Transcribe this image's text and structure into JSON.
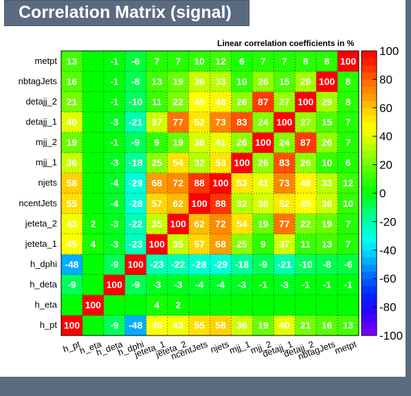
{
  "title": "Correlation Matrix (signal)",
  "subtitle": "Linear correlation coefficients in %",
  "chart_data": {
    "type": "heatmap",
    "labels": [
      "h_pt",
      "h_eta",
      "h_deta",
      "h_dphi",
      "jeteta_1",
      "jeteta_2",
      "ncentJets",
      "njets",
      "mjj_1",
      "mjj_2",
      "detajj_1",
      "detajj_2",
      "nbtagJets",
      "metpt"
    ],
    "matrix": [
      [
        100,
        null,
        -9,
        -48,
        45,
        43,
        55,
        58,
        36,
        19,
        40,
        21,
        16,
        13
      ],
      [
        null,
        100,
        null,
        null,
        4,
        2,
        null,
        null,
        null,
        null,
        null,
        null,
        null,
        null
      ],
      [
        -9,
        null,
        100,
        -9,
        -3,
        -3,
        -4,
        -4,
        -3,
        -1,
        -3,
        -1,
        -1,
        -1
      ],
      [
        -48,
        null,
        -9,
        100,
        -23,
        -22,
        -28,
        -29,
        -18,
        -9,
        -21,
        -10,
        -8,
        -6
      ],
      [
        45,
        4,
        -3,
        -23,
        100,
        35,
        57,
        68,
        25,
        9,
        37,
        11,
        13,
        7
      ],
      [
        43,
        2,
        -3,
        -22,
        35,
        100,
        62,
        72,
        54,
        19,
        77,
        22,
        19,
        7
      ],
      [
        55,
        null,
        -4,
        -28,
        57,
        62,
        100,
        88,
        32,
        38,
        52,
        45,
        36,
        10
      ],
      [
        58,
        null,
        -4,
        -29,
        68,
        72,
        88,
        100,
        53,
        41,
        73,
        48,
        33,
        12
      ],
      [
        36,
        null,
        -3,
        -18,
        25,
        54,
        32,
        53,
        100,
        26,
        83,
        26,
        10,
        6
      ],
      [
        19,
        null,
        -1,
        -9,
        9,
        19,
        38,
        41,
        26,
        100,
        24,
        87,
        26,
        7
      ],
      [
        40,
        null,
        -3,
        -21,
        37,
        77,
        52,
        73,
        83,
        24,
        100,
        27,
        15,
        7
      ],
      [
        21,
        null,
        -1,
        -10,
        11,
        22,
        45,
        48,
        26,
        87,
        27,
        100,
        29,
        8
      ],
      [
        16,
        null,
        -1,
        -8,
        13,
        19,
        36,
        33,
        10,
        26,
        15,
        29,
        100,
        8
      ],
      [
        13,
        null,
        -1,
        -6,
        7,
        7,
        10,
        12,
        6,
        7,
        7,
        8,
        8,
        100
      ]
    ],
    "zlim": [
      -100,
      100
    ],
    "colorbar_ticks": [
      100,
      80,
      60,
      40,
      20,
      0,
      -20,
      -40,
      -60,
      -80,
      -100
    ],
    "grid": true
  }
}
